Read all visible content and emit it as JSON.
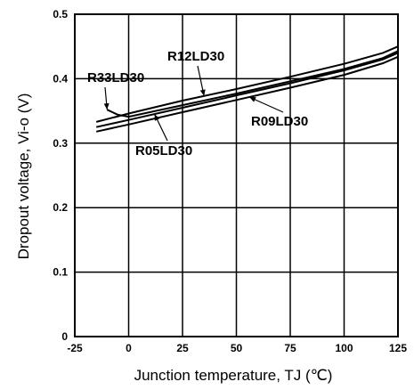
{
  "chart_data": {
    "type": "line",
    "xlabel": "Junction temperature, TJ (℃)",
    "ylabel": "Dropout  voltage, Vi-o (V)",
    "xlim": [
      -25,
      125
    ],
    "ylim": [
      0,
      0.5
    ],
    "x_ticks": [
      "-25",
      "0",
      "25",
      "50",
      "75",
      "100",
      "125"
    ],
    "y_ticks": [
      "0",
      "0.1",
      "0.2",
      "0.3",
      "0.4",
      "0.5"
    ],
    "grid": true,
    "legend": "none",
    "series": [
      {
        "name": "R12LD30",
        "x": [
          -15,
          0,
          25,
          50,
          75,
          100,
          118,
          125
        ],
        "y": [
          0.333,
          0.346,
          0.366,
          0.384,
          0.403,
          0.423,
          0.44,
          0.45
        ]
      },
      {
        "name": "R33LD30",
        "x": [
          -10,
          -5,
          0,
          25,
          50,
          75,
          100,
          118,
          125
        ],
        "y": [
          0.352,
          0.344,
          0.341,
          0.359,
          0.377,
          0.396,
          0.415,
          0.432,
          0.443
        ]
      },
      {
        "name": "R05LD30",
        "x": [
          -15,
          0,
          25,
          50,
          75,
          100,
          118,
          125
        ],
        "y": [
          0.325,
          0.336,
          0.355,
          0.374,
          0.393,
          0.413,
          0.43,
          0.44
        ]
      },
      {
        "name": "R09LD30",
        "x": [
          -15,
          0,
          25,
          50,
          75,
          100,
          118,
          125
        ],
        "y": [
          0.318,
          0.329,
          0.348,
          0.367,
          0.386,
          0.406,
          0.424,
          0.434
        ]
      }
    ]
  }
}
